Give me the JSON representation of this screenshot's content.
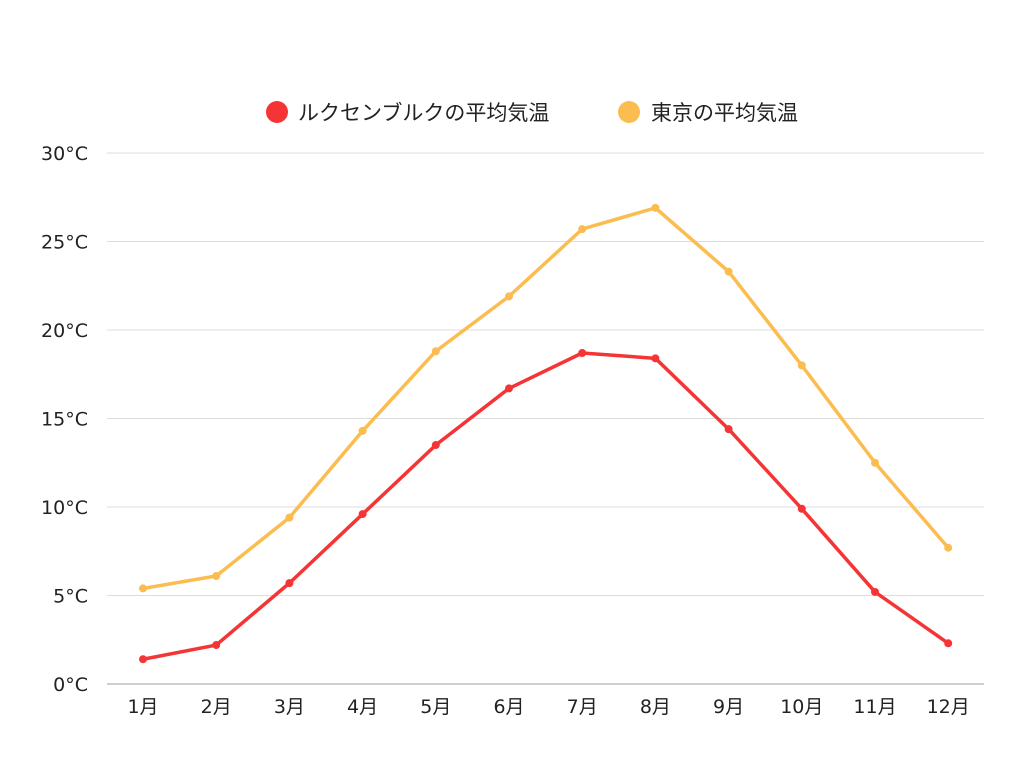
{
  "chart_data": {
    "type": "line",
    "categories": [
      "1月",
      "2月",
      "3月",
      "4月",
      "5月",
      "6月",
      "7月",
      "8月",
      "9月",
      "10月",
      "11月",
      "12月"
    ],
    "series": [
      {
        "name": "ルクセンブルクの平均気温",
        "color": "#f53535",
        "values": [
          1.4,
          2.2,
          5.7,
          9.6,
          13.5,
          16.7,
          18.7,
          18.4,
          14.4,
          9.9,
          5.2,
          2.3
        ]
      },
      {
        "name": "東京の平均気温",
        "color": "#fbbd50",
        "values": [
          5.4,
          6.1,
          9.4,
          14.3,
          18.8,
          21.9,
          25.7,
          26.9,
          23.3,
          18.0,
          12.5,
          7.7
        ]
      }
    ],
    "y_ticks": [
      "0°C",
      "5°C",
      "10°C",
      "15°C",
      "20°C",
      "25°C",
      "30°C"
    ],
    "ylim": [
      0,
      30
    ],
    "grid": true,
    "legend_position": "top-center"
  }
}
